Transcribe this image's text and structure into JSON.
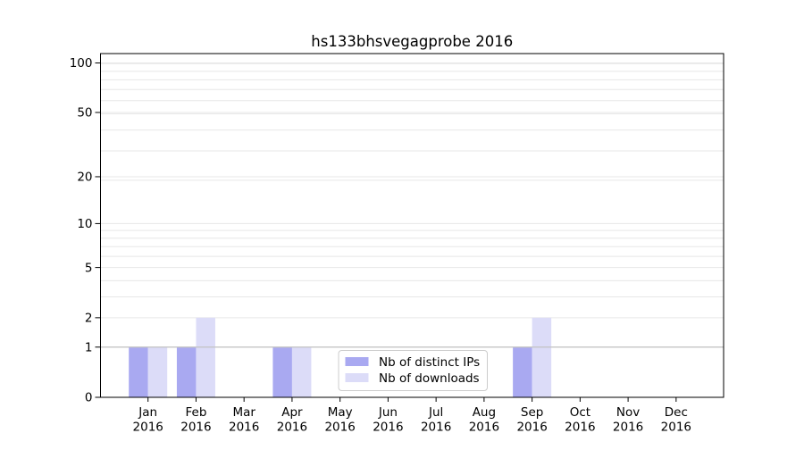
{
  "title": "hs133bhsvegagprobe 2016",
  "legend": {
    "items": [
      {
        "label": "Nb of distinct IPs",
        "color": "#a9a9f1"
      },
      {
        "label": "Nb of downloads",
        "color": "#dcdcf8"
      }
    ]
  },
  "chart_data": {
    "type": "bar",
    "title": "hs133bhsvegagprobe 2016",
    "categories": [
      "Jan",
      "Feb",
      "Mar",
      "Apr",
      "May",
      "Jun",
      "Jul",
      "Aug",
      "Sep",
      "Oct",
      "Nov",
      "Dec"
    ],
    "x_tick_year": "2016",
    "series": [
      {
        "name": "Nb of distinct IPs",
        "color": "#a9a9f1",
        "values": [
          1,
          1,
          0,
          1,
          0,
          0,
          0,
          0,
          1,
          0,
          0,
          0
        ]
      },
      {
        "name": "Nb of downloads",
        "color": "#dcdcf8",
        "values": [
          1,
          2,
          0,
          1,
          0,
          0,
          0,
          0,
          2,
          0,
          0,
          0
        ]
      }
    ],
    "xlabel": "",
    "ylabel": "",
    "yscale": "log1p",
    "ylim": [
      0,
      115
    ],
    "yticks": [
      0,
      1,
      2,
      5,
      10,
      20,
      50,
      100
    ],
    "grid": true,
    "grid_values": [
      1,
      2,
      3,
      4,
      5,
      6,
      7,
      8,
      9,
      10,
      19,
      20,
      29,
      39,
      49,
      50,
      59,
      69,
      79,
      89,
      99,
      100
    ],
    "reference_line_y": 1,
    "legend_position": "lower center"
  },
  "colors": {
    "background": "#ffffff",
    "grid": "#e7e7e7",
    "reference_line": "#c2c2c2",
    "axis": "#000000",
    "legend_border": "#cccccc"
  }
}
